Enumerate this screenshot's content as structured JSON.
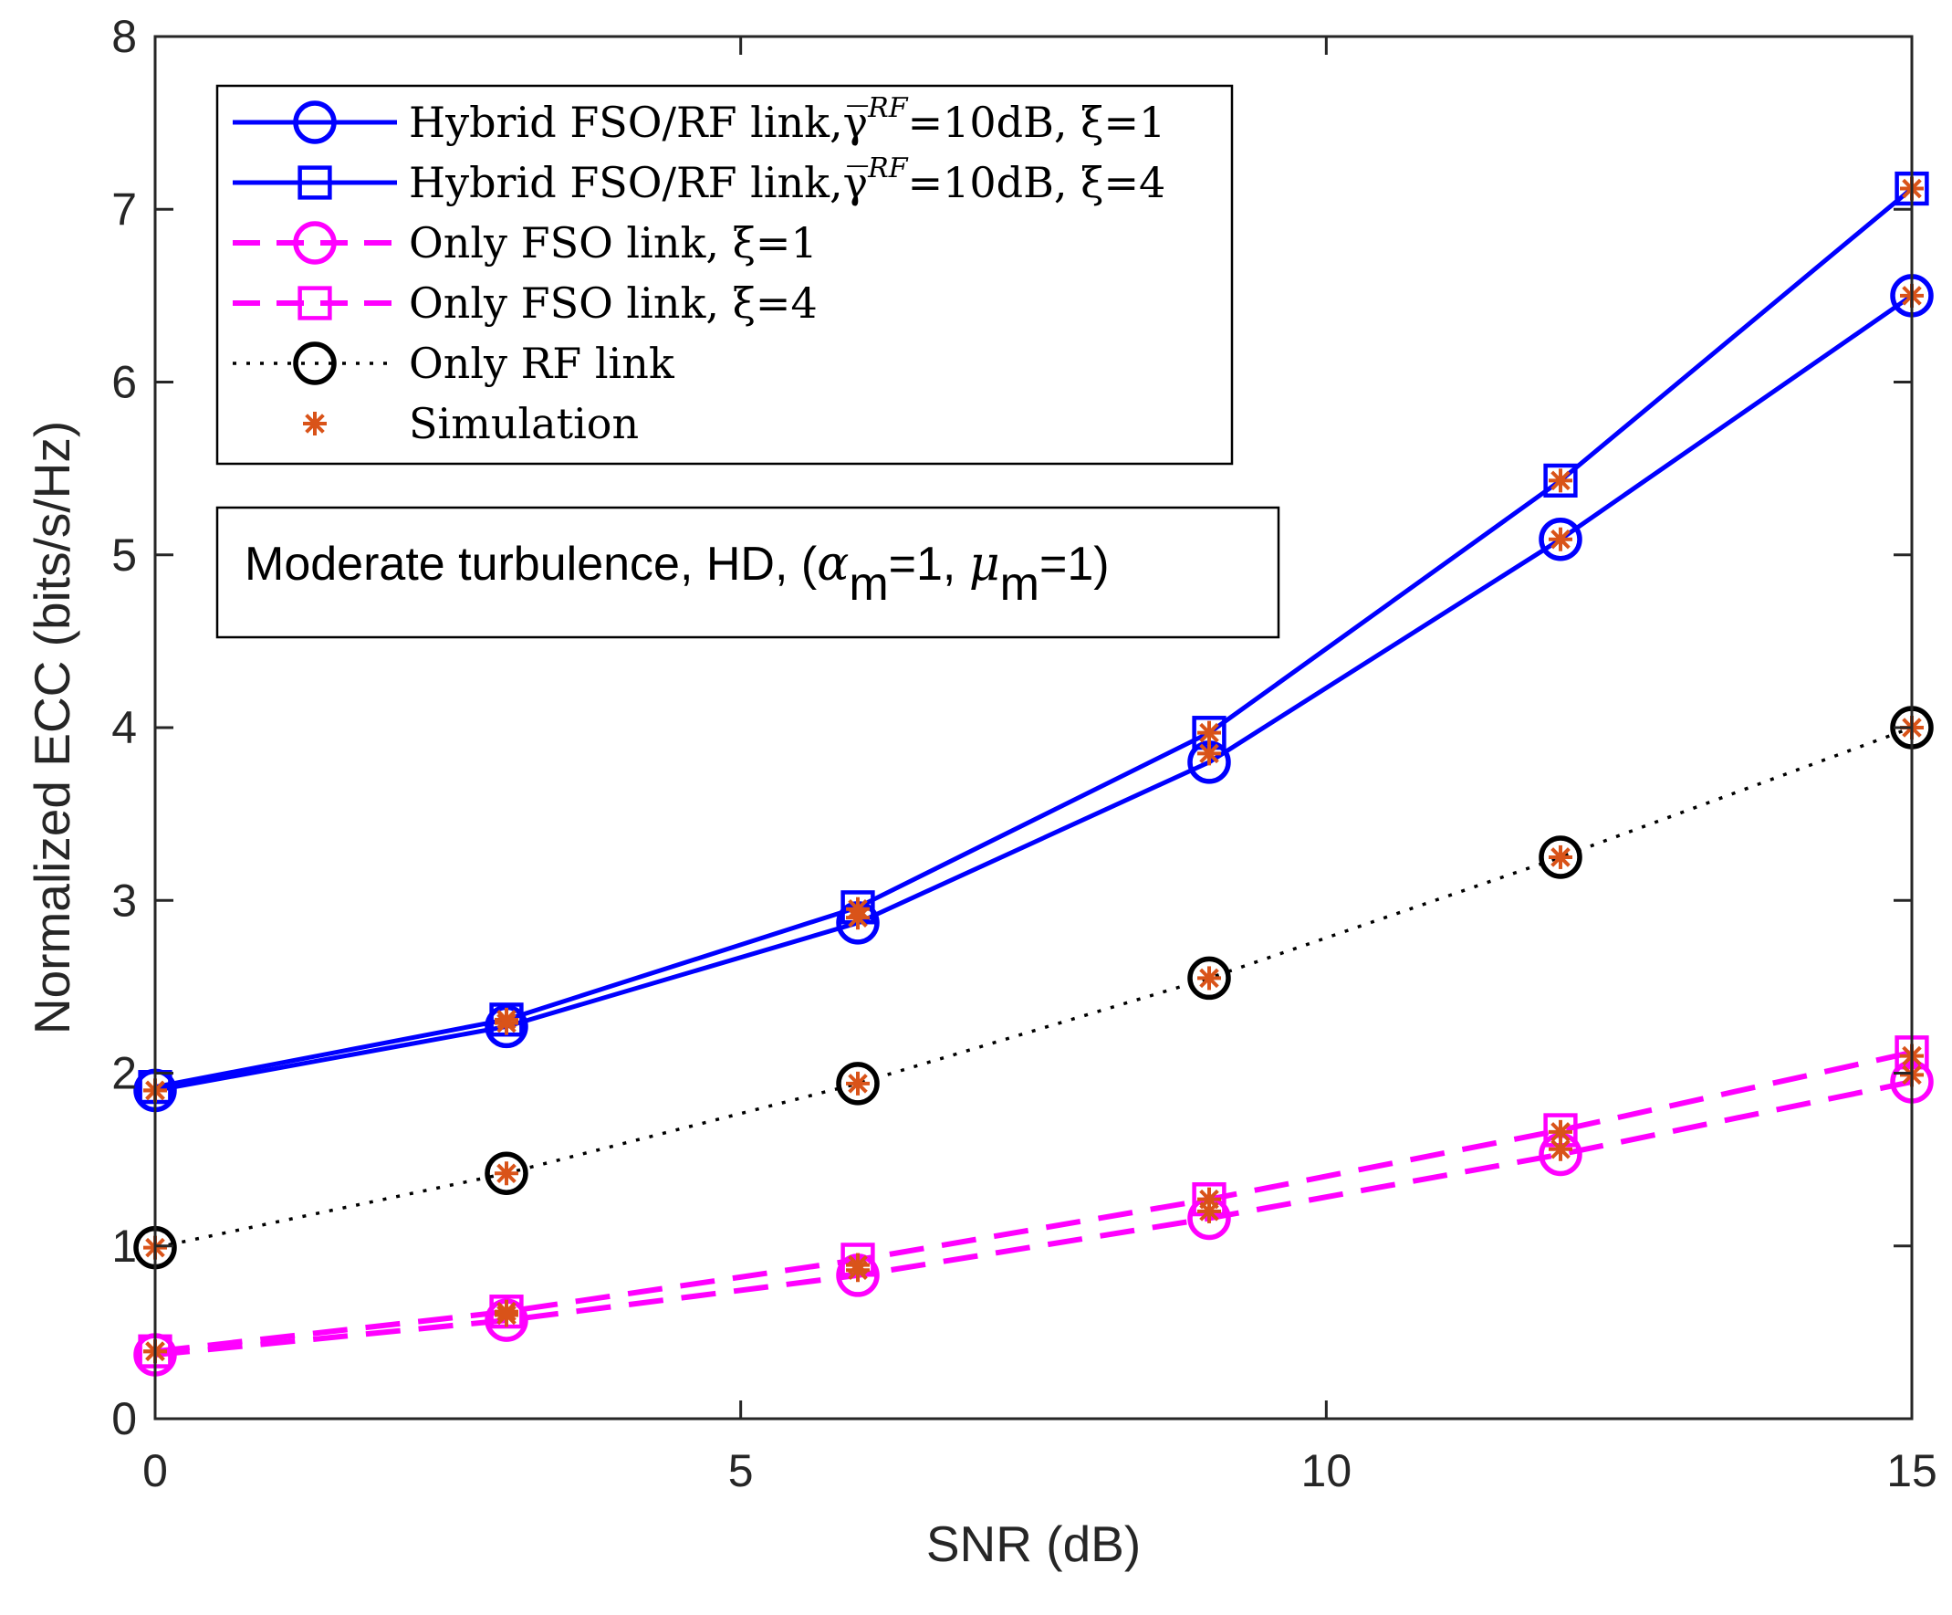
{
  "chart_data": {
    "type": "line",
    "title": "",
    "xlabel": "SNR (dB)",
    "ylabel": "Normalized ECC (bits/s/Hz)",
    "xlim": [
      0,
      15
    ],
    "ylim": [
      0,
      8
    ],
    "xticks": [
      0,
      5,
      10,
      15
    ],
    "yticks": [
      0,
      1,
      2,
      3,
      4,
      5,
      6,
      7,
      8
    ],
    "grid": false,
    "legend_position": "top-left",
    "x": [
      0,
      3,
      6,
      9,
      12,
      15
    ],
    "series": [
      {
        "name": "Hybrid FSO/RF link,γ̅",
        "legend_sup": "RF",
        "legend_suffix": "=10dB, ξ=1",
        "values": [
          1.9,
          2.27,
          2.87,
          3.8,
          5.09,
          6.5
        ],
        "color": "#0000ff",
        "dash": "solid",
        "marker": "circle"
      },
      {
        "name": "Hybrid FSO/RF link,γ̅",
        "legend_sup": "RF",
        "legend_suffix": "=10dB, ξ=4",
        "values": [
          1.92,
          2.31,
          2.96,
          3.97,
          5.43,
          7.12
        ],
        "color": "#0000ff",
        "dash": "solid",
        "marker": "square"
      },
      {
        "name": "Only FSO link, ξ=1",
        "legend_sup": "",
        "legend_suffix": "",
        "values": [
          0.37,
          0.57,
          0.83,
          1.16,
          1.53,
          1.95
        ],
        "color": "#ff00ff",
        "dash": "dashed",
        "marker": "circle"
      },
      {
        "name": "Only FSO link, ξ=4",
        "legend_sup": "",
        "legend_suffix": "",
        "values": [
          0.39,
          0.62,
          0.92,
          1.27,
          1.67,
          2.12
        ],
        "color": "#ff00ff",
        "dash": "dashed",
        "marker": "square"
      },
      {
        "name": "Only RF link",
        "legend_sup": "",
        "legend_suffix": "",
        "values": [
          0.99,
          1.42,
          1.94,
          2.55,
          3.25,
          4.0
        ],
        "color": "#000000",
        "dash": "dotted",
        "marker": "circle"
      }
    ],
    "simulation": {
      "name": "Simulation",
      "color": "#d95319",
      "marker": "asterisk",
      "values": [
        [
          1.9,
          2.29,
          2.9,
          3.85,
          5.09,
          6.5
        ],
        [
          1.9,
          2.31,
          2.95,
          3.97,
          5.43,
          7.12
        ],
        [
          0.39,
          0.6,
          0.86,
          1.2,
          1.56,
          1.99
        ],
        [
          0.39,
          0.62,
          0.89,
          1.27,
          1.66,
          2.1
        ],
        [
          0.99,
          1.42,
          1.94,
          2.55,
          3.25,
          4.0
        ]
      ]
    },
    "annotation": {
      "prefix": "Moderate turbulence, HD, (",
      "alpha": "α",
      "sub1": "m",
      "mid": "=1, ",
      "mu": "μ",
      "sub2": "m",
      "suffix": "=1)"
    }
  }
}
